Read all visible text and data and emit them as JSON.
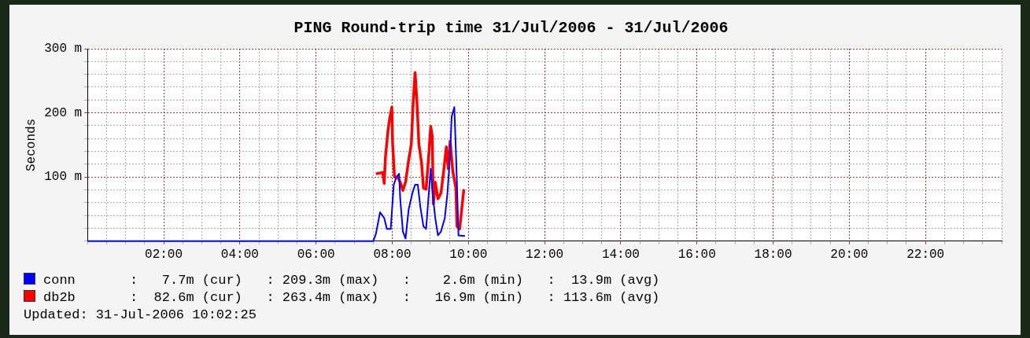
{
  "chart_data": {
    "type": "line",
    "title": "PING Round-trip time 31/Jul/2006 - 31/Jul/2006",
    "ylabel": "Seconds",
    "xlim": [
      0,
      24
    ],
    "ylim": [
      0,
      300
    ],
    "xticks": [
      {
        "value": 0,
        "label": null
      },
      {
        "value": 0.5,
        "label": null
      },
      {
        "value": 1,
        "label": null
      },
      {
        "value": 1.5,
        "label": null
      },
      {
        "value": 2,
        "label": "02:00"
      },
      {
        "value": 2.5,
        "label": null
      },
      {
        "value": 3,
        "label": null
      },
      {
        "value": 3.5,
        "label": null
      },
      {
        "value": 4,
        "label": "04:00"
      },
      {
        "value": 4.5,
        "label": null
      },
      {
        "value": 5,
        "label": null
      },
      {
        "value": 5.5,
        "label": null
      },
      {
        "value": 6,
        "label": "06:00"
      },
      {
        "value": 6.5,
        "label": null
      },
      {
        "value": 7,
        "label": null
      },
      {
        "value": 7.5,
        "label": null
      },
      {
        "value": 8,
        "label": "08:00"
      },
      {
        "value": 8.5,
        "label": null
      },
      {
        "value": 9,
        "label": null
      },
      {
        "value": 9.5,
        "label": null
      },
      {
        "value": 10,
        "label": "10:00"
      },
      {
        "value": 10.5,
        "label": null
      },
      {
        "value": 11,
        "label": null
      },
      {
        "value": 11.5,
        "label": null
      },
      {
        "value": 12,
        "label": "12:00"
      },
      {
        "value": 12.5,
        "label": null
      },
      {
        "value": 13,
        "label": null
      },
      {
        "value": 13.5,
        "label": null
      },
      {
        "value": 14,
        "label": "14:00"
      },
      {
        "value": 14.5,
        "label": null
      },
      {
        "value": 15,
        "label": null
      },
      {
        "value": 15.5,
        "label": null
      },
      {
        "value": 16,
        "label": "16:00"
      },
      {
        "value": 16.5,
        "label": null
      },
      {
        "value": 17,
        "label": null
      },
      {
        "value": 17.5,
        "label": null
      },
      {
        "value": 18,
        "label": "18:00"
      },
      {
        "value": 18.5,
        "label": null
      },
      {
        "value": 19,
        "label": null
      },
      {
        "value": 19.5,
        "label": null
      },
      {
        "value": 20,
        "label": "20:00"
      },
      {
        "value": 20.5,
        "label": null
      },
      {
        "value": 21,
        "label": null
      },
      {
        "value": 21.5,
        "label": null
      },
      {
        "value": 22,
        "label": "22:00"
      },
      {
        "value": 22.5,
        "label": null
      },
      {
        "value": 23,
        "label": null
      },
      {
        "value": 23.5,
        "label": null
      },
      {
        "value": 24,
        "label": null
      }
    ],
    "yticks": [
      {
        "value": 0,
        "label": null
      },
      {
        "value": 20,
        "label": null
      },
      {
        "value": 40,
        "label": null
      },
      {
        "value": 60,
        "label": null
      },
      {
        "value": 80,
        "label": null
      },
      {
        "value": 100,
        "label": "100 m"
      },
      {
        "value": 120,
        "label": null
      },
      {
        "value": 140,
        "label": null
      },
      {
        "value": 160,
        "label": null
      },
      {
        "value": 180,
        "label": null
      },
      {
        "value": 200,
        "label": "200 m"
      },
      {
        "value": 220,
        "label": null
      },
      {
        "value": 240,
        "label": null
      },
      {
        "value": 260,
        "label": null
      },
      {
        "value": 280,
        "label": null
      },
      {
        "value": 300,
        "label": "300 m"
      }
    ],
    "grid": true,
    "legend": "bottom",
    "marker": "none",
    "line_style": "solid",
    "series": [
      {
        "name": "conn",
        "color": "#0000ff",
        "x": [
          0,
          7.5,
          7.57,
          7.68,
          7.79,
          7.86,
          7.96,
          8.04,
          8.11,
          8.18,
          8.21,
          8.28,
          8.35,
          8.43,
          8.53,
          8.6,
          8.67,
          8.74,
          8.82,
          8.89,
          8.96,
          9.01,
          9.06,
          9.13,
          9.2,
          9.28,
          9.38,
          9.45,
          9.52,
          9.56,
          9.63,
          9.67,
          9.7,
          9.74,
          9.91
        ],
        "values": [
          0,
          0,
          11,
          45,
          36,
          19,
          19,
          88,
          100,
          105,
          66,
          15,
          4,
          49,
          75,
          88,
          88,
          53,
          23,
          19,
          75,
          113,
          75,
          36,
          9,
          15,
          36,
          75,
          135,
          194,
          209,
          143,
          88,
          9,
          8
        ]
      },
      {
        "name": "db2b",
        "color": "#ff0000",
        "x": [
          7.57,
          7.75,
          7.79,
          7.82,
          7.89,
          7.93,
          7.99,
          8.01,
          8.06,
          8.14,
          8.21,
          8.28,
          8.35,
          8.43,
          8.5,
          8.55,
          8.6,
          8.65,
          8.7,
          8.77,
          8.82,
          8.89,
          8.96,
          9.01,
          9.05,
          9.08,
          9.13,
          9.2,
          9.28,
          9.35,
          9.42,
          9.47,
          9.52,
          9.59,
          9.67,
          9.7,
          9.77,
          9.83,
          9.88
        ],
        "values": [
          105,
          107,
          90,
          130,
          173,
          190,
          209,
          152,
          100,
          100,
          92,
          79,
          92,
          126,
          151,
          216,
          263,
          216,
          151,
          122,
          83,
          81,
          135,
          179,
          164,
          58,
          92,
          66,
          75,
          109,
          147,
          113,
          156,
          109,
          83,
          23,
          19,
          53,
          81
        ]
      }
    ],
    "annotations": [
      ":   7.7m (cur)   : 209.3m (max)   :    2.6m (min)   :  13.9m (avg)",
      ":  82.6m (cur)   : 263.4m (max)   :   16.9m (min)   : 113.6m (avg)",
      "Updated: 31-Jul-2006 10:02:25"
    ]
  }
}
